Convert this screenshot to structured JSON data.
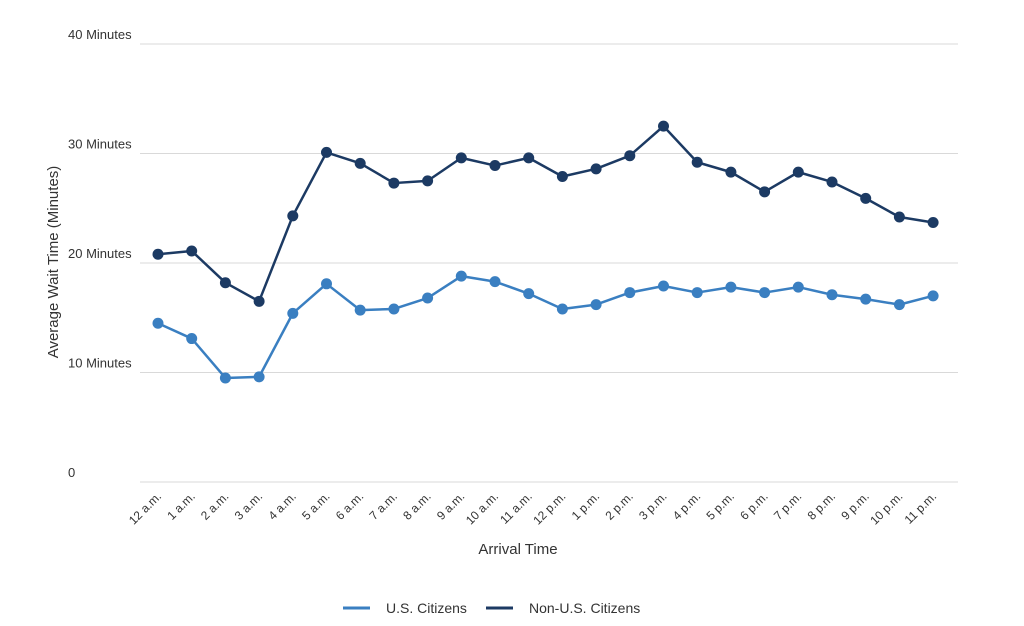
{
  "chart_data": {
    "type": "line",
    "xlabel": "Arrival Time",
    "ylabel": "Average Wait Time (Minutes)",
    "ylim": [
      0,
      40
    ],
    "yticks": [
      {
        "value": 0,
        "label": "0"
      },
      {
        "value": 10,
        "label": "10 Minutes"
      },
      {
        "value": 20,
        "label": "20 Minutes"
      },
      {
        "value": 30,
        "label": "30 Minutes"
      },
      {
        "value": 40,
        "label": "40 Minutes"
      }
    ],
    "grid": true,
    "legend_position": "bottom",
    "categories": [
      "12 a.m.",
      "1 a.m.",
      "2 a.m.",
      "3 a.m.",
      "4 a.m.",
      "5 a.m.",
      "6 a.m.",
      "7 a.m.",
      "8 a.m.",
      "9 a.m.",
      "10 a.m.",
      "11 a.m.",
      "12 p.m.",
      "1 p.m.",
      "2 p.m.",
      "3 p.m.",
      "4 p.m.",
      "5 p.m.",
      "6 p.m.",
      "7 p.m.",
      "8 p.m.",
      "9 p.m.",
      "10 p.m.",
      "11 p.m."
    ],
    "series": [
      {
        "name": "U.S. Citizens",
        "color": "#3a7fc1",
        "values": [
          14.5,
          13.1,
          9.5,
          9.6,
          15.4,
          18.1,
          15.7,
          15.8,
          16.8,
          18.8,
          18.3,
          17.2,
          15.8,
          16.2,
          17.3,
          17.9,
          17.3,
          17.8,
          17.3,
          17.8,
          17.1,
          16.7,
          16.2,
          17.0
        ]
      },
      {
        "name": "Non-U.S. Citizens",
        "color": "#1c3a63",
        "values": [
          20.8,
          21.1,
          18.2,
          16.5,
          24.3,
          30.1,
          29.1,
          27.3,
          27.5,
          29.6,
          28.9,
          29.6,
          27.9,
          28.6,
          29.8,
          32.5,
          29.2,
          28.3,
          26.5,
          28.3,
          27.4,
          25.9,
          24.2,
          23.7
        ]
      }
    ]
  }
}
